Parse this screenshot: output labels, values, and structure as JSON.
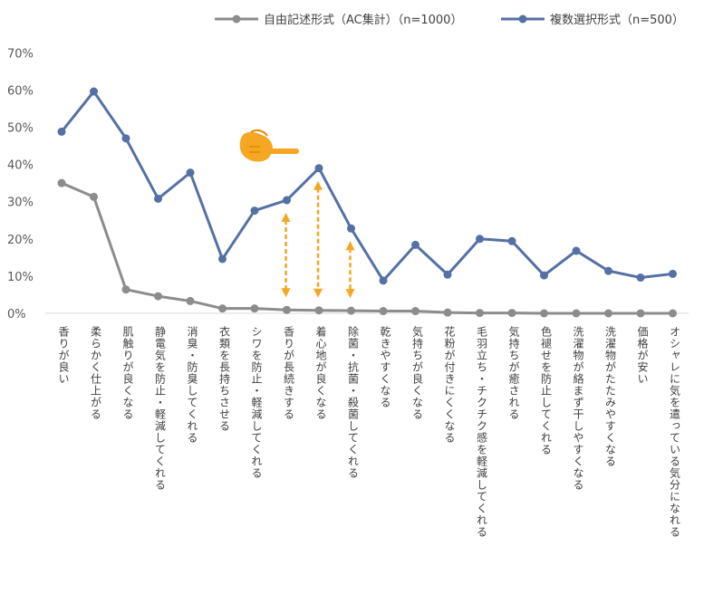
{
  "chart_data": {
    "type": "line",
    "categories": [
      "香りが良い",
      "柔らかく仕上がる",
      "肌触りが良くなる",
      "静電気を防止・軽減してくれる",
      "消臭・防臭してくれる",
      "衣類を長持ちさせる",
      "シワを防止・軽減してくれる",
      "香りが長続きする",
      "着心地が良くなる",
      "除菌・抗菌・殺菌してくれる",
      "乾きやすくなる",
      "気持ちが良くなる",
      "花粉が付きにくくなる",
      "毛羽立ち・チクチク感を軽減してくれる",
      "気持ちが癒される",
      "色褪せを防止してくれる",
      "洗濯物が絡まず干しやすくなる",
      "洗濯物がたたみやすくなる",
      "価格が安い",
      "オシャレに気を遣っている気分になれる"
    ],
    "series": [
      {
        "name": "自由記述形式（AC集計）（n=1000）",
        "color": "#8c8c8c",
        "values": [
          35.0,
          31.3,
          6.4,
          4.6,
          3.3,
          1.3,
          1.3,
          0.9,
          0.8,
          0.7,
          0.6,
          0.6,
          0.2,
          0.1,
          0.1,
          0.0,
          0.0,
          0.0,
          0.0,
          0.0
        ]
      },
      {
        "name": "複数選択形式（n=500）",
        "color": "#5470a4",
        "values": [
          48.8,
          59.6,
          47.0,
          30.8,
          37.8,
          14.6,
          27.6,
          30.4,
          39.0,
          22.8,
          8.8,
          18.4,
          10.4,
          20.0,
          19.4,
          10.2,
          16.8,
          11.4,
          9.6,
          10.6
        ]
      }
    ],
    "yticks": [
      "0%",
      "10%",
      "20%",
      "30%",
      "40%",
      "50%",
      "60%",
      "70%"
    ],
    "ylim": [
      0,
      70
    ],
    "grid": false,
    "legend": "top",
    "annotation_color": "#f5a623",
    "arrow_categories": [
      7,
      8,
      9
    ],
    "hand_category": 6
  }
}
